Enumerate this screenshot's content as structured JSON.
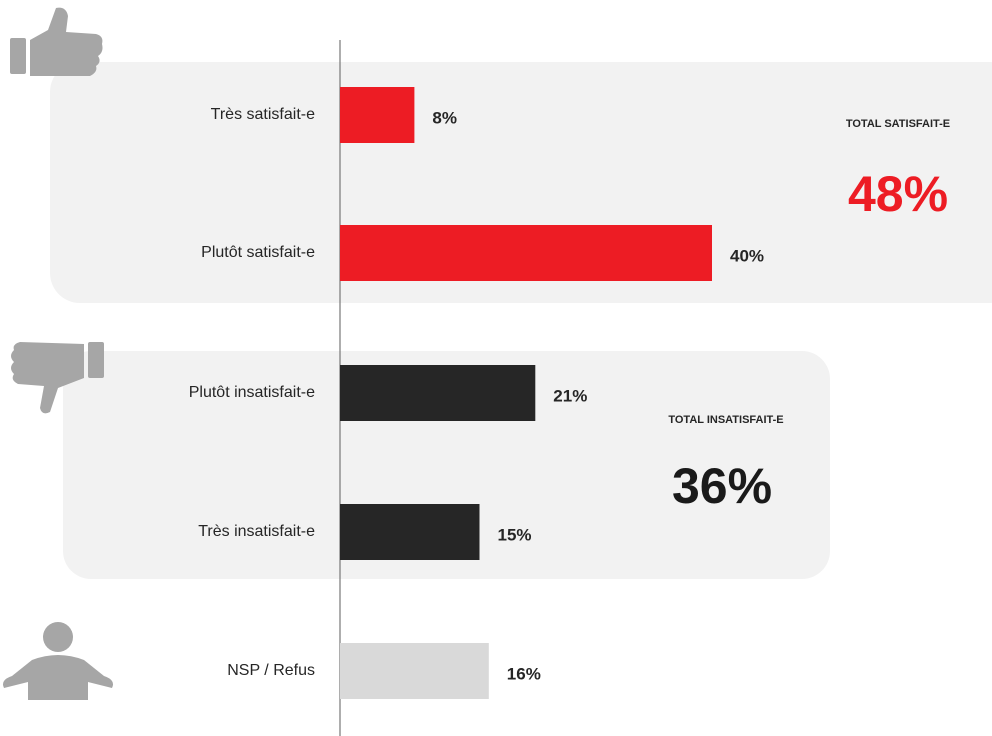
{
  "chart_data": {
    "type": "hbar",
    "categories": [
      "Très satisfait-e",
      "Plutôt satisfait-e",
      "Plutôt insatisfait-e",
      "Très insatisfait-e",
      "NSP / Refus"
    ],
    "values": [
      8,
      40,
      21,
      15,
      16
    ],
    "value_labels": [
      "8%",
      "40%",
      "21%",
      "15%",
      "16%"
    ],
    "colors": [
      "#ed1c24",
      "#ed1c24",
      "#262626",
      "#262626",
      "#d9d9d9"
    ],
    "annotations": [
      {
        "title": "TOTAL SATISFAIT-E",
        "text": "48%",
        "color": "#ed1c24"
      },
      {
        "title": "TOTAL INSATISFAIT-E",
        "text": "36%",
        "color": "#1a1a1a"
      }
    ]
  }
}
